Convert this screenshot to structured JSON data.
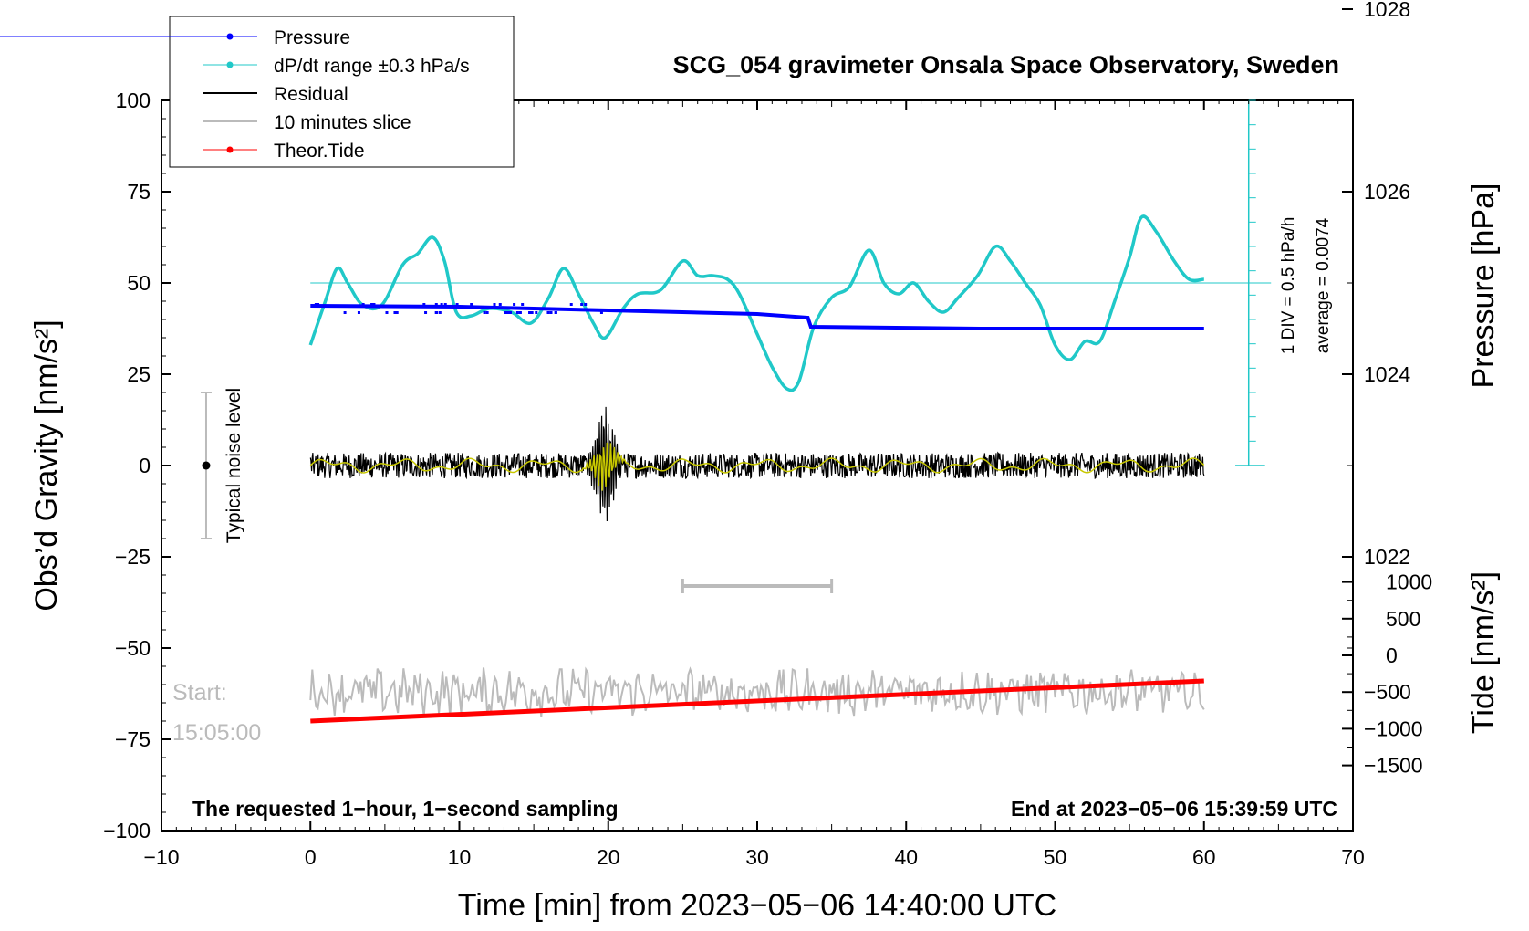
{
  "chart_data": {
    "type": "line",
    "title": "SCG_054 gravimeter Onsala Space Observatory, Sweden",
    "xlabel": "Time [min] from 2023−05−06 14:40:00 UTC",
    "ylabel_left": "Obs’d Gravity [nm/s²]",
    "ylabel_pressure": "Pressure [hPa]",
    "ylabel_tide": "Tide [nm/s²]",
    "xlim": [
      -10,
      70
    ],
    "ylim": [
      -100,
      100
    ],
    "x_ticks": [
      "−10",
      "0",
      "10",
      "20",
      "30",
      "40",
      "50",
      "60",
      "70"
    ],
    "y_ticks": [
      "100",
      "75",
      "50",
      "25",
      "0",
      "−25",
      "−50",
      "−75",
      "−100"
    ],
    "pressure_axis": {
      "ylim_hPa": [
        1020,
        1030
      ],
      "ticks": [
        "1022",
        "1024",
        "1026",
        "1028"
      ]
    },
    "tide_axis": {
      "ylim": [
        -1500,
        1500
      ],
      "ticks": [
        "1000",
        "500",
        "0",
        "−500",
        "−1000",
        "−1500"
      ]
    },
    "legend": {
      "position": "top-left",
      "entries": [
        {
          "label": "Pressure",
          "color": "#0000ff"
        },
        {
          "label": "dP/dt range ±0.3 hPa/s",
          "color": "#20c8c8"
        },
        {
          "label": "Residual",
          "color": "#000000"
        },
        {
          "label": "10 minutes slice",
          "color": "#bbbbbb"
        },
        {
          "label": "Theor.Tide",
          "color": "#ff0000"
        }
      ]
    },
    "series": [
      {
        "name": "Pressure",
        "unit": "hPa",
        "color": "#0000ff",
        "points": [
          [
            0,
            1024.75
          ],
          [
            10,
            1024.74
          ],
          [
            20,
            1024.7
          ],
          [
            30,
            1024.66
          ],
          [
            33.4,
            1024.62
          ],
          [
            33.6,
            1024.52
          ],
          [
            45,
            1024.5
          ],
          [
            60,
            1024.5
          ]
        ]
      },
      {
        "name": "dP/dt",
        "unit": "gravity-axis",
        "color": "#20c8c8",
        "points": [
          [
            0,
            33
          ],
          [
            1,
            45
          ],
          [
            1.8,
            54
          ],
          [
            2.5,
            50
          ],
          [
            3.5,
            44
          ],
          [
            4.8,
            44
          ],
          [
            6.2,
            55
          ],
          [
            7.2,
            58
          ],
          [
            8.2,
            62.5
          ],
          [
            9,
            56
          ],
          [
            9.8,
            42
          ],
          [
            10.8,
            41
          ],
          [
            12,
            43
          ],
          [
            13.5,
            42
          ],
          [
            14.8,
            39
          ],
          [
            16,
            46
          ],
          [
            17,
            54
          ],
          [
            18,
            47
          ],
          [
            19,
            39
          ],
          [
            19.8,
            35
          ],
          [
            21,
            43
          ],
          [
            22,
            47
          ],
          [
            23.5,
            48
          ],
          [
            25,
            56
          ],
          [
            26,
            52
          ],
          [
            27,
            52
          ],
          [
            28,
            51
          ],
          [
            28.8,
            47
          ],
          [
            30,
            36
          ],
          [
            31,
            27
          ],
          [
            32,
            21
          ],
          [
            32.8,
            23
          ],
          [
            33.8,
            38
          ],
          [
            35,
            46
          ],
          [
            36.2,
            49
          ],
          [
            37.5,
            59
          ],
          [
            38.5,
            50
          ],
          [
            39.5,
            47
          ],
          [
            40.5,
            50
          ],
          [
            41.5,
            45
          ],
          [
            42.5,
            42
          ],
          [
            43.5,
            46
          ],
          [
            44.8,
            52
          ],
          [
            46,
            60
          ],
          [
            47,
            56
          ],
          [
            48,
            50
          ],
          [
            49,
            44
          ],
          [
            50,
            33
          ],
          [
            51,
            29
          ],
          [
            52,
            34
          ],
          [
            53,
            34
          ],
          [
            54,
            45
          ],
          [
            55,
            57
          ],
          [
            55.8,
            68
          ],
          [
            56.8,
            64
          ],
          [
            58,
            56
          ],
          [
            59,
            51
          ],
          [
            60,
            51
          ]
        ]
      },
      {
        "name": "Residual",
        "color": "#000000",
        "baseline": 0,
        "event_window_min": [
          18.5,
          21
        ],
        "event_range": [
          -20,
          15
        ]
      },
      {
        "name": "Residual smoothed",
        "color": "#c8c800",
        "baseline": 0
      },
      {
        "name": "10 minutes slice",
        "color": "#bbbbbb",
        "baseline": -62
      },
      {
        "name": "Theor.Tide",
        "color": "#ff0000",
        "points": [
          [
            0,
            -70
          ],
          [
            60,
            -59
          ]
        ]
      }
    ],
    "annotations": {
      "noise_label": "Typical noise level",
      "noise_range": [
        -20,
        20
      ],
      "slice_bar_min": [
        25,
        35
      ],
      "slice_bar_y": -33,
      "pressure_scale_1": "1 DIV = 0.5 hPa/h",
      "pressure_scale_2": "average = 0.0074",
      "start_label": "Start:",
      "start_time": "15:05:00",
      "sampling_note": "The requested 1−hour, 1−second sampling",
      "end_note": "End at 2023−05−06 15:39:59 UTC",
      "dpdt_reference_y": 50
    }
  }
}
